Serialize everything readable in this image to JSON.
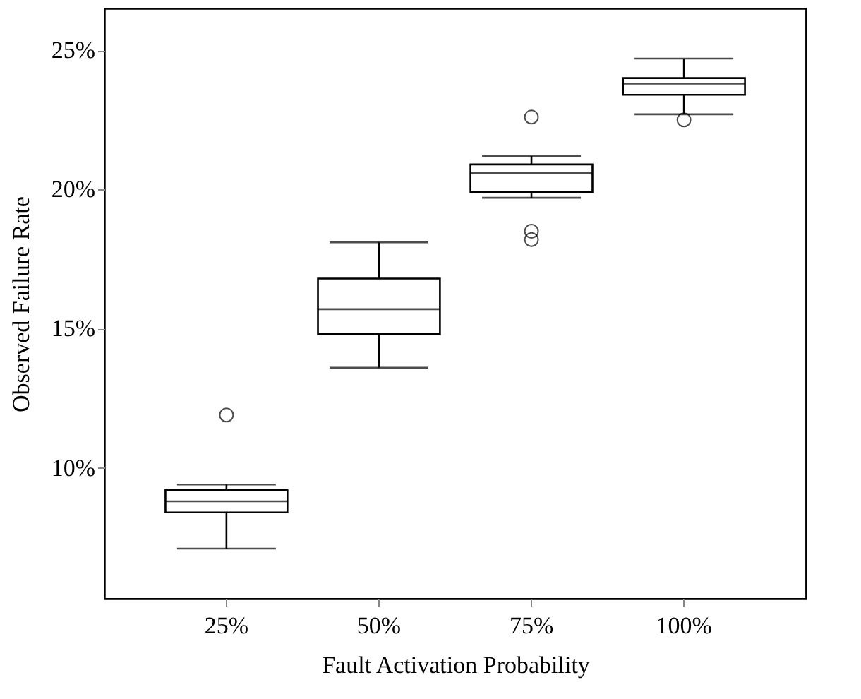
{
  "chart_data": {
    "type": "box",
    "xlabel": "Fault Activation Probability",
    "ylabel": "Observed Failure Rate",
    "categories": [
      "25%",
      "50%",
      "75%",
      "100%"
    ],
    "boxes": [
      {
        "low": 7.1,
        "q1": 8.4,
        "median": 8.8,
        "q3": 9.2,
        "high": 9.4,
        "outliers": [
          11.9
        ]
      },
      {
        "low": 13.6,
        "q1": 14.8,
        "median": 15.7,
        "q3": 16.8,
        "high": 18.1
      },
      {
        "low": 19.7,
        "q1": 19.9,
        "median": 20.6,
        "q3": 20.9,
        "high": 21.2,
        "outliers": [
          22.6,
          18.5,
          18.2
        ]
      },
      {
        "low": 22.7,
        "q1": 23.4,
        "median": 23.8,
        "q3": 24.0,
        "high": 24.7,
        "outliers": [
          22.5
        ]
      }
    ],
    "color": "#000000",
    "ylim": [
      5.3,
      26.5
    ],
    "yticks": [
      {
        "value": 10,
        "label": "10%"
      },
      {
        "value": 15,
        "label": "15%"
      },
      {
        "value": 20,
        "label": "20%"
      },
      {
        "value": 25,
        "label": "25%"
      }
    ],
    "grid": false
  }
}
